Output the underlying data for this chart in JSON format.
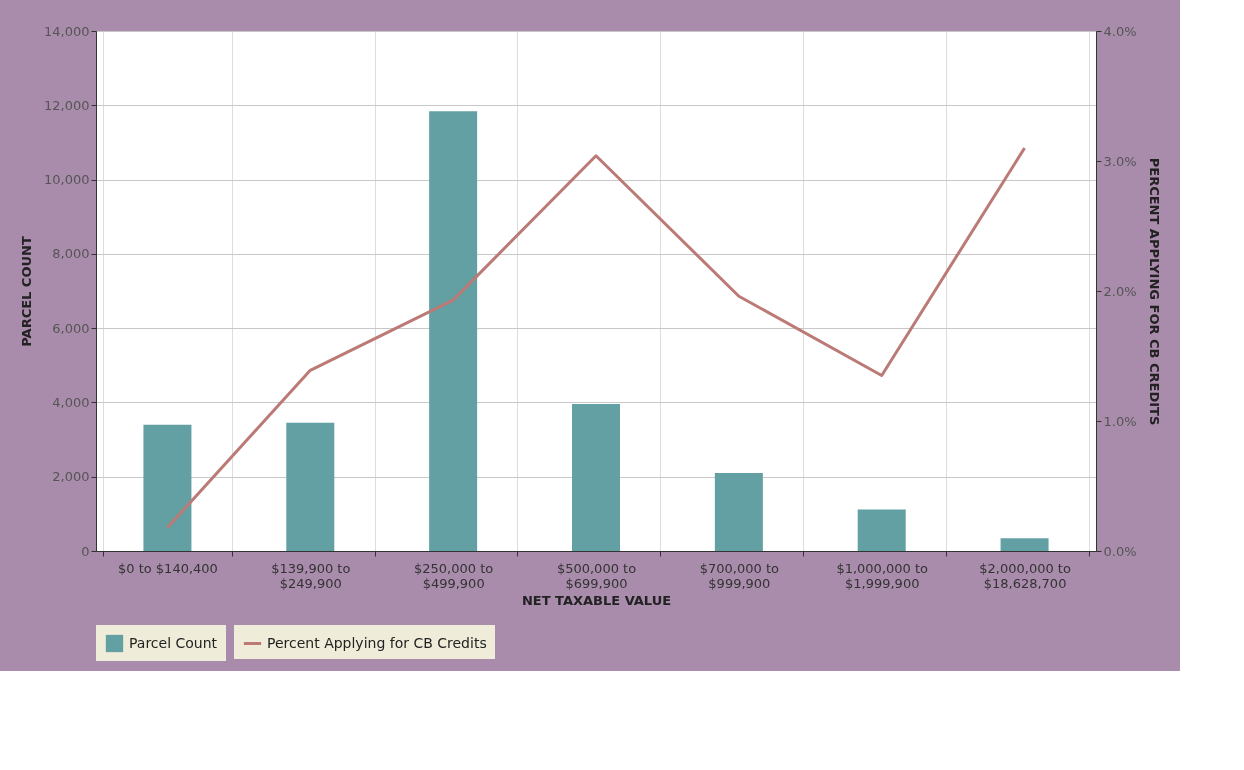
{
  "chart_data": {
    "type": "bar",
    "xlabel": "NET TAXABLE VALUE",
    "ylabel": "PARCEL COUNT",
    "y2label": "PERCENT APPLYING FOR CB CREDITS",
    "categories": [
      "$0 to $140,400",
      "$139,900 to\n$249,900",
      "$250,000 to\n$499,900",
      "$500,000 to\n$699,900",
      "$700,000 to\n$999,900",
      "$1,000,000 to\n$1,999,900",
      "$2,000,000 to\n$18,628,700"
    ],
    "series": [
      {
        "name": "Parcel Count",
        "color": "#62a0a3",
        "values": [
          3400,
          3450,
          11840,
          3960,
          2100,
          1120,
          340
        ]
      },
      {
        "name": "Percent Applying for CB Credits",
        "type": "line",
        "axis": "y2",
        "color": "#bb7a76",
        "values": [
          0.18,
          1.39,
          1.93,
          3.04,
          1.96,
          1.35,
          3.1
        ]
      }
    ],
    "ylim": [
      0,
      14000
    ],
    "yticks": [
      0,
      {
        "value": 2000,
        "label": "2,000"
      },
      {
        "value": 4000,
        "label": "4,000"
      },
      {
        "value": 6000,
        "label": "6,000"
      },
      {
        "value": 8000,
        "label": "8,000"
      },
      {
        "value": 10000,
        "label": "10,000"
      },
      {
        "value": 12000,
        "label": "12,000"
      },
      {
        "value": 14000,
        "label": "14,000"
      }
    ],
    "y2lim": [
      0,
      4
    ],
    "y2ticks": [
      {
        "value": 0,
        "label": "0.0%"
      },
      {
        "value": 1,
        "label": "1.0%"
      },
      {
        "value": 2,
        "label": "2.0%"
      },
      {
        "value": 3,
        "label": "3.0%"
      },
      {
        "value": 4,
        "label": "4.0%"
      }
    ],
    "grid": true,
    "legend": "bottom",
    "marker": "none",
    "line_style": "solid"
  }
}
